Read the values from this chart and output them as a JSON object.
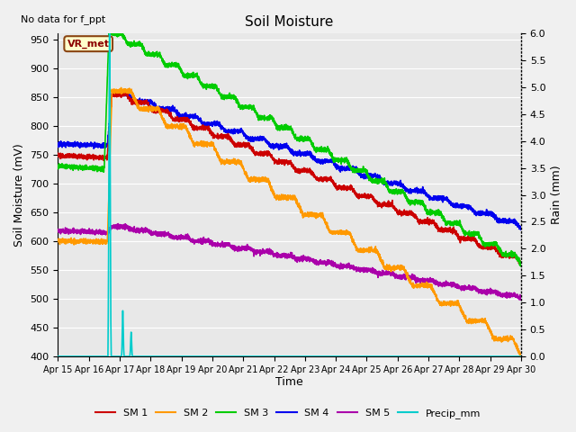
{
  "title": "Soil Moisture",
  "xlabel": "Time",
  "ylabel_left": "Soil Moisture (mV)",
  "ylabel_right": "Rain (mm)",
  "note": "No data for f_ppt",
  "legend_label": "VR_met",
  "ylim_left": [
    400,
    960
  ],
  "ylim_right": [
    0.0,
    6.0
  ],
  "yticks_left": [
    400,
    450,
    500,
    550,
    600,
    650,
    700,
    750,
    800,
    850,
    900,
    950
  ],
  "yticks_right": [
    0.0,
    0.5,
    1.0,
    1.5,
    2.0,
    2.5,
    3.0,
    3.5,
    4.0,
    4.5,
    5.0,
    5.5,
    6.0
  ],
  "date_labels": [
    "Apr 15",
    "Apr 16",
    "Apr 17",
    "Apr 18",
    "Apr 19",
    "Apr 20",
    "Apr 21",
    "Apr 22",
    "Apr 23",
    "Apr 24",
    "Apr 25",
    "Apr 26",
    "Apr 27",
    "Apr 28",
    "Apr 29",
    "Apr 30"
  ],
  "colors": {
    "SM1": "#cc0000",
    "SM2": "#ff9900",
    "SM3": "#00cc00",
    "SM4": "#0000ee",
    "SM5": "#aa00aa",
    "Precip": "#00cccc",
    "background": "#e8e8e8",
    "fig_bg": "#f0f0f0"
  },
  "grid_color": "#ffffff",
  "linewidth": 1.2
}
